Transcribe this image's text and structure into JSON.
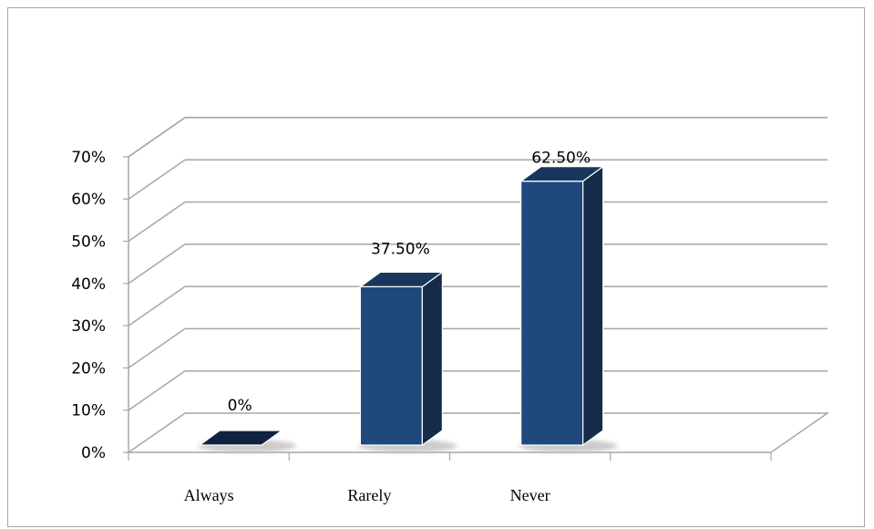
{
  "chart_data": {
    "type": "bar",
    "style": "3d-column",
    "categories": [
      "Always",
      "Rarely",
      "Never"
    ],
    "values": [
      0,
      37.5,
      62.5
    ],
    "data_labels": [
      "0%",
      "37.50%",
      "62.50%"
    ],
    "y_ticks": [
      "0%",
      "10%",
      "20%",
      "30%",
      "40%",
      "50%",
      "60%",
      "70%"
    ],
    "ylim": [
      0,
      70
    ],
    "title": "",
    "xlabel": "",
    "ylabel": "",
    "grid": true,
    "legend": "none",
    "colors": {
      "bar_front": "#1f497d",
      "bar_side": "#142b4a",
      "bar_top": "#17375e",
      "gridline": "#a6a6a6",
      "floor": "#ffffff"
    }
  }
}
